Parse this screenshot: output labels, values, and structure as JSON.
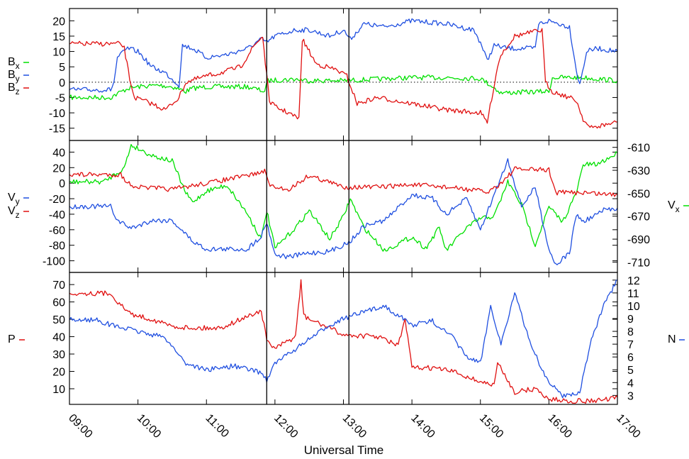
{
  "chart_data": {
    "type": "line",
    "title": "",
    "xlabel": "Universal Time",
    "x_ticks": [
      "09:00",
      "10:00",
      "11:00",
      "12:00",
      "13:00",
      "14:00",
      "15:00",
      "16:00",
      "17:00"
    ],
    "xlim_hours": [
      9,
      17
    ],
    "vertical_markers_hours": [
      11.88,
      13.08
    ],
    "panels": [
      {
        "id": "magnetic-field",
        "ylim": [
          -19,
          24
        ],
        "yticks": [
          -15,
          -10,
          -5,
          0,
          5,
          10,
          15,
          20
        ],
        "zero_line": true,
        "series": [
          {
            "name": "Bx",
            "sub": "x",
            "color": "#00e000",
            "x": [
              9,
              9.6,
              9.68,
              9.85,
              10,
              10.3,
              10.5,
              10.7,
              10.8,
              11,
              11.3,
              11.6,
              11.85,
              11.9,
              12.3,
              12.5,
              13,
              13.5,
              14,
              14.5,
              15,
              15.15,
              15.3,
              16,
              16.05,
              16.5,
              17
            ],
            "y": [
              -5,
              -5,
              -4,
              -2,
              -1.5,
              -1,
              -1.5,
              -3,
              -2,
              -1.5,
              -1.5,
              -1.5,
              -3,
              0.5,
              1,
              0.5,
              0.5,
              1,
              1.5,
              1.5,
              1.2,
              -1,
              -3.5,
              -3,
              1.5,
              1.5,
              0.5
            ]
          },
          {
            "name": "By",
            "sub": "y",
            "color": "#1f4fe0",
            "x": [
              9,
              9.6,
              9.65,
              9.7,
              9.85,
              10,
              10.2,
              10.4,
              10.6,
              10.65,
              10.8,
              11,
              11.3,
              11.6,
              11.8,
              11.88,
              12,
              12.3,
              12.5,
              12.8,
              13,
              13.1,
              13.3,
              13.6,
              14,
              14.5,
              14.9,
              15,
              15.1,
              15.2,
              15.4,
              15.8,
              15.85,
              16,
              16.3,
              16.4,
              16.45,
              16.55,
              16.7,
              17
            ],
            "y": [
              -2.5,
              -2.5,
              0,
              8,
              11,
              10,
              5,
              3,
              -1,
              12,
              11,
              8,
              9,
              11,
              14,
              13,
              15,
              17,
              17,
              15,
              17,
              14,
              19,
              18,
              20,
              19,
              17,
              13,
              7,
              12,
              11,
              11,
              19,
              20,
              18,
              4,
              -1,
              10,
              11,
              10
            ]
          },
          {
            "name": "Bz",
            "sub": "z",
            "color": "#e01010",
            "x": [
              9,
              9.75,
              9.8,
              9.88,
              9.95,
              10.2,
              10.4,
              10.6,
              10.7,
              11,
              11.2,
              11.5,
              11.7,
              11.82,
              11.88,
              11.92,
              12,
              12.2,
              12.35,
              12.4,
              12.6,
              12.9,
              13.05,
              13.2,
              13.5,
              14,
              14.5,
              15,
              15.1,
              15.25,
              15.3,
              15.5,
              15.9,
              15.95,
              16.05,
              16.3,
              16.4,
              16.5,
              16.6,
              17
            ],
            "y": [
              12.5,
              12.5,
              11,
              1,
              -5,
              -7,
              -9,
              -5,
              0,
              2,
              3,
              5,
              12,
              15,
              2,
              -6,
              -8,
              -10,
              -12,
              14,
              6,
              4,
              2,
              -7,
              -5,
              -7,
              -9,
              -10,
              -13,
              5,
              9,
              15,
              17,
              0,
              -3,
              -5,
              -6,
              -12,
              -15,
              -13
            ]
          }
        ]
      },
      {
        "id": "velocity",
        "ylim": [
          -115,
          55
        ],
        "yticks": [
          -100,
          -80,
          -60,
          -40,
          -20,
          0,
          20,
          40
        ],
        "right_ylim": [
          -719,
          -604
        ],
        "right_yticks": [
          -710,
          -690,
          -670,
          -650,
          -630,
          -610
        ],
        "series": [
          {
            "name": "Vx",
            "sub": "x",
            "axis": "right",
            "color": "#00e000",
            "x": [
              9,
              9.5,
              9.8,
              9.9,
              10.2,
              10.5,
              10.7,
              10.8,
              11,
              11.3,
              11.6,
              11.8,
              11.88,
              12,
              12.3,
              12.5,
              12.8,
              13,
              13.1,
              13.3,
              13.6,
              14,
              14.2,
              14.4,
              14.5,
              14.8,
              15,
              15.2,
              15.4,
              15.6,
              15.8,
              16,
              16.2,
              16.4,
              16.5,
              16.7,
              17
            ],
            "y": [
              -640,
              -640,
              -628,
              -608,
              -617,
              -622,
              -650,
              -658,
              -648,
              -643,
              -668,
              -690,
              -665,
              -698,
              -680,
              -665,
              -690,
              -670,
              -655,
              -680,
              -700,
              -688,
              -698,
              -680,
              -700,
              -680,
              -672,
              -670,
              -640,
              -660,
              -695,
              -662,
              -675,
              -650,
              -625,
              -625,
              -615
            ]
          },
          {
            "name": "Vy",
            "sub": "y",
            "axis": "left",
            "color": "#1f4fe0",
            "x": [
              9,
              9.6,
              9.7,
              9.9,
              10.2,
              10.5,
              10.8,
              11,
              11.3,
              11.6,
              11.8,
              11.88,
              12,
              12.2,
              12.5,
              12.8,
              13.1,
              13.3,
              13.6,
              14,
              14.3,
              14.5,
              14.8,
              15,
              15.2,
              15.4,
              15.6,
              15.8,
              16,
              16.1,
              16.3,
              16.4,
              16.5,
              16.8,
              17
            ],
            "y": [
              -30,
              -30,
              -48,
              -58,
              -48,
              -48,
              -75,
              -85,
              -85,
              -85,
              -68,
              -50,
              -92,
              -95,
              -90,
              -88,
              -75,
              -55,
              -48,
              -15,
              -20,
              -40,
              -20,
              -60,
              -15,
              30,
              -30,
              -5,
              -85,
              -105,
              -90,
              -40,
              -50,
              -35,
              -32
            ]
          },
          {
            "name": "Vz",
            "sub": "z",
            "axis": "left",
            "color": "#e01010",
            "x": [
              9,
              9.75,
              9.85,
              10,
              10.5,
              11,
              11.5,
              11.85,
              11.95,
              12.2,
              12.5,
              13,
              13.5,
              14,
              14.5,
              15,
              15.1,
              15.3,
              15.5,
              16,
              16.1,
              16.5,
              17
            ],
            "y": [
              11,
              11,
              0,
              -5,
              -8,
              0,
              8,
              15,
              -5,
              -8,
              10,
              -5,
              -5,
              -2,
              -5,
              -10,
              -12,
              0,
              18,
              17,
              -12,
              -12,
              -15
            ]
          }
        ]
      },
      {
        "id": "pressure-density",
        "ylim": [
          1,
          77
        ],
        "yticks": [
          10,
          20,
          30,
          40,
          50,
          60,
          70
        ],
        "right_ylim": [
          2.3,
          12.6
        ],
        "right_yticks": [
          3,
          4,
          5,
          6,
          7,
          8,
          9,
          10,
          11,
          12
        ],
        "series": [
          {
            "name": "P",
            "axis": "left",
            "color": "#e01010",
            "x": [
              9,
              9.6,
              9.75,
              9.9,
              10.2,
              10.5,
              10.8,
              11.2,
              11.5,
              11.8,
              11.88,
              12,
              12.3,
              12.38,
              12.42,
              12.5,
              12.8,
              13,
              13.5,
              13.8,
              13.9,
              14,
              14.3,
              14.6,
              15,
              15.2,
              15.25,
              15.5,
              15.8,
              16,
              16.3,
              16.6,
              16.9,
              17
            ],
            "y": [
              65,
              65,
              58,
              53,
              50,
              46,
              45,
              45,
              50,
              55,
              38,
              33,
              40,
              72,
              52,
              50,
              45,
              41,
              40,
              35,
              50,
              22,
              22,
              20,
              14,
              12,
              25,
              8,
              10,
              4,
              3,
              3,
              4,
              5
            ]
          },
          {
            "name": "N",
            "axis": "right",
            "color": "#1f4fe0",
            "x": [
              9,
              9.4,
              9.6,
              10,
              10.4,
              10.7,
              11,
              11.4,
              11.8,
              11.88,
              12,
              12.4,
              12.8,
              13,
              13.3,
              13.6,
              14,
              14.3,
              14.6,
              14.8,
              15,
              15.15,
              15.3,
              15.5,
              15.7,
              15.9,
              16,
              16.2,
              16.45,
              16.6,
              16.8,
              17
            ],
            "y": [
              8.9,
              8.9,
              8.5,
              8,
              7.5,
              5.5,
              5,
              5.3,
              4.8,
              4.2,
              5.5,
              7,
              8.5,
              9,
              9.5,
              10,
              8.5,
              8.8,
              7.5,
              6,
              5.5,
              10,
              7,
              11,
              7.5,
              5,
              4,
              3,
              3.2,
              7,
              10,
              12
            ]
          }
        ]
      }
    ]
  }
}
